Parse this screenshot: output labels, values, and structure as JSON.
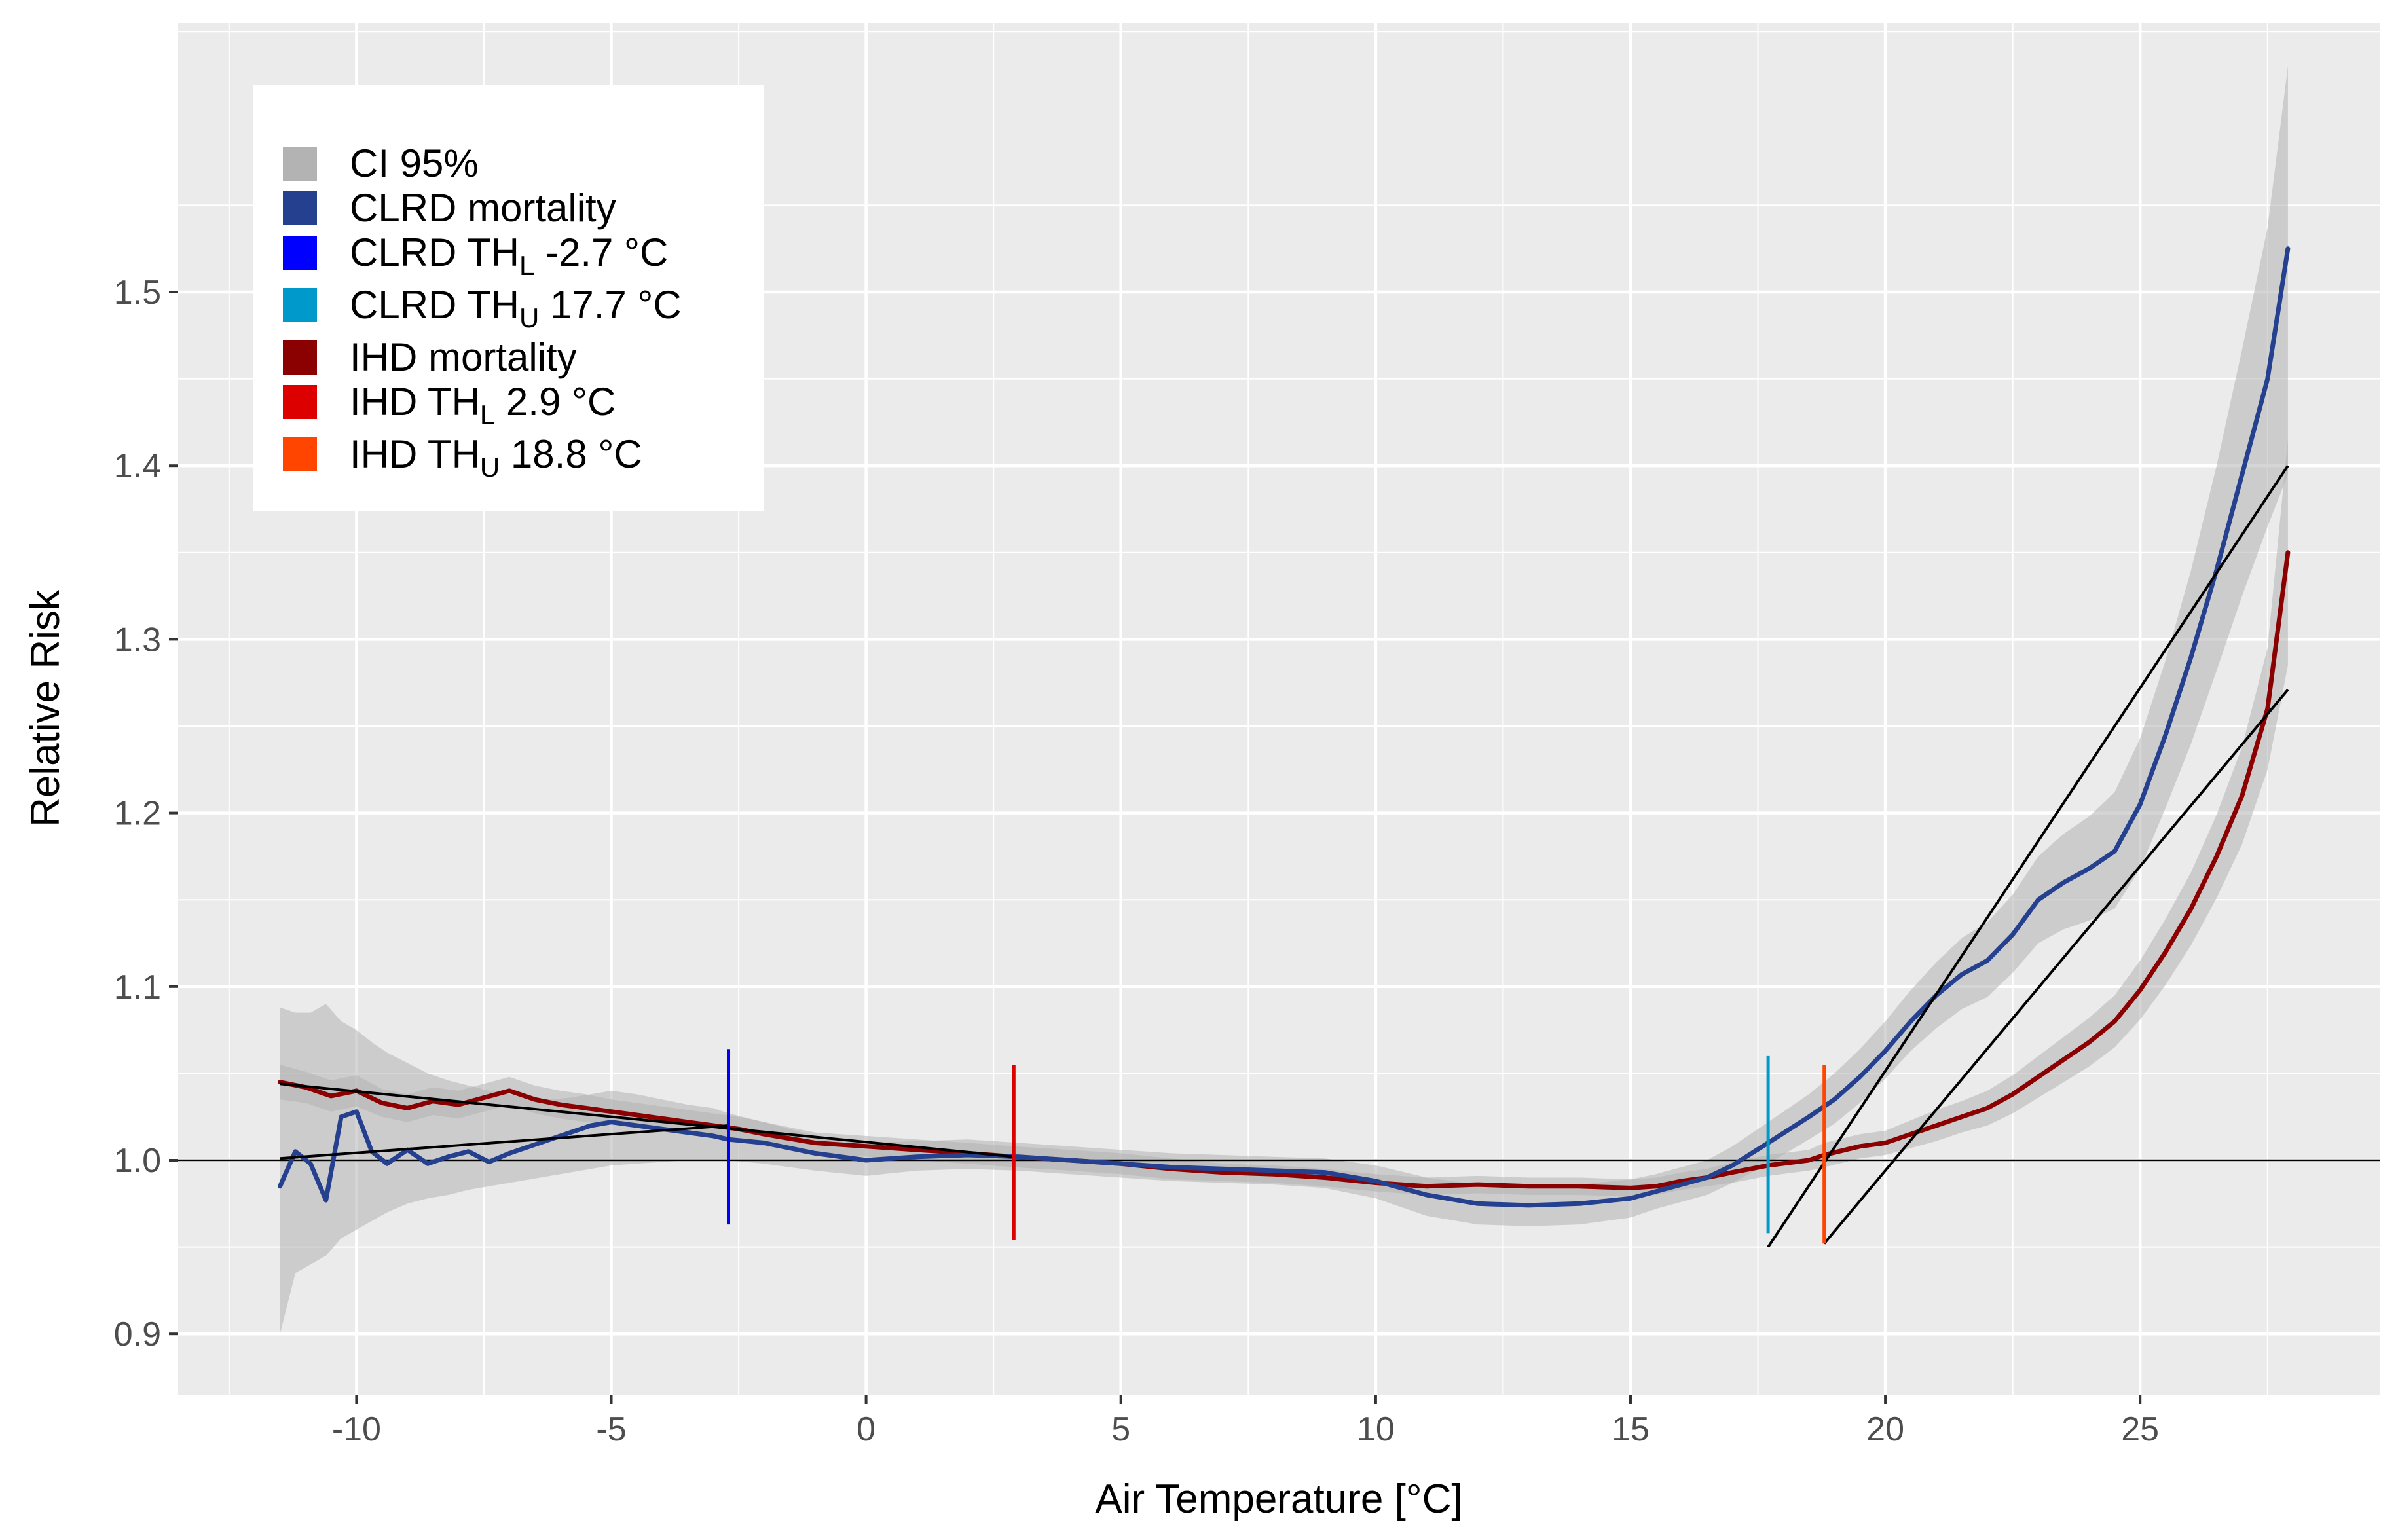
{
  "chart_data": {
    "type": "line",
    "title": "",
    "xlabel": "Air Temperature [°C]",
    "ylabel": "Relative Risk",
    "xlim": [
      -13.5,
      29.7
    ],
    "ylim": [
      0.865,
      1.655
    ],
    "x_ticks": [
      -10,
      -5,
      0,
      5,
      10,
      15,
      20,
      25
    ],
    "x_tick_labels": [
      "-10",
      "-5",
      "0",
      "5",
      "10",
      "15",
      "20",
      "25"
    ],
    "y_ticks": [
      0.9,
      1.0,
      1.1,
      1.2,
      1.3,
      1.4,
      1.5
    ],
    "y_tick_labels": [
      "0.9",
      "1.0",
      "1.1",
      "1.2",
      "1.3",
      "1.4",
      "1.5"
    ],
    "grid": true,
    "reference_line_y": 1.0,
    "legend_position": "top-left",
    "legend": [
      {
        "key": "ci",
        "label": "CI 95%",
        "color": "#b3b3b3"
      },
      {
        "key": "clrd",
        "label": "CLRD mortality",
        "color": "#24408e"
      },
      {
        "key": "clrd_thl",
        "label": "CLRD TH",
        "sub": "L",
        "suffix": " -2.7 °C",
        "color": "#0000ff"
      },
      {
        "key": "clrd_thu",
        "label": "CLRD TH",
        "sub": "U",
        "suffix": " 17.7 °C",
        "color": "#0099cc"
      },
      {
        "key": "ihd",
        "label": "IHD mortality",
        "color": "#8b0000"
      },
      {
        "key": "ihd_thl",
        "label": "IHD TH",
        "sub": "L",
        "suffix": " 2.9 °C",
        "color": "#dd0000"
      },
      {
        "key": "ihd_thu",
        "label": "IHD TH",
        "sub": "U",
        "suffix": " 18.8 °C",
        "color": "#ff4500"
      }
    ],
    "series": [
      {
        "name": "CLRD mortality",
        "color": "#24408e",
        "x": [
          -11.5,
          -11.2,
          -10.9,
          -10.6,
          -10.3,
          -10.0,
          -9.7,
          -9.4,
          -9.0,
          -8.6,
          -8.2,
          -7.8,
          -7.4,
          -7.0,
          -6.6,
          -6.2,
          -5.8,
          -5.4,
          -5.0,
          -4.5,
          -4.0,
          -3.5,
          -3.0,
          -2.7,
          -2.0,
          -1.0,
          0.0,
          1.0,
          2.0,
          3.0,
          4.0,
          5.0,
          6.0,
          7.0,
          8.0,
          9.0,
          10.0,
          11.0,
          12.0,
          13.0,
          14.0,
          15.0,
          15.5,
          16.0,
          16.5,
          17.0,
          17.7,
          18.5,
          19.0,
          19.5,
          20.0,
          20.5,
          21.0,
          21.5,
          22.0,
          22.5,
          23.0,
          23.5,
          24.0,
          24.5,
          25.0,
          25.5,
          26.0,
          26.5,
          27.0,
          27.5,
          27.9
        ],
        "y": [
          0.985,
          1.005,
          0.998,
          0.977,
          1.025,
          1.028,
          1.005,
          0.998,
          1.006,
          0.998,
          1.002,
          1.005,
          0.999,
          1.004,
          1.008,
          1.012,
          1.016,
          1.02,
          1.022,
          1.02,
          1.018,
          1.016,
          1.014,
          1.012,
          1.01,
          1.004,
          1.0,
          1.002,
          1.003,
          1.002,
          1.0,
          0.998,
          0.996,
          0.995,
          0.994,
          0.993,
          0.988,
          0.98,
          0.975,
          0.974,
          0.975,
          0.978,
          0.982,
          0.986,
          0.99,
          0.997,
          1.01,
          1.025,
          1.035,
          1.048,
          1.063,
          1.08,
          1.095,
          1.107,
          1.115,
          1.13,
          1.15,
          1.16,
          1.168,
          1.178,
          1.205,
          1.245,
          1.29,
          1.34,
          1.395,
          1.45,
          1.525
        ],
        "ci_lower": [
          0.9,
          0.935,
          0.94,
          0.945,
          0.955,
          0.96,
          0.965,
          0.97,
          0.975,
          0.978,
          0.98,
          0.983,
          0.985,
          0.987,
          0.989,
          0.991,
          0.993,
          0.995,
          0.997,
          0.998,
          0.999,
          1.0,
          1.0,
          1.0,
          0.998,
          0.994,
          0.991,
          0.994,
          0.995,
          0.994,
          0.992,
          0.99,
          0.988,
          0.987,
          0.986,
          0.984,
          0.978,
          0.968,
          0.963,
          0.962,
          0.963,
          0.967,
          0.972,
          0.976,
          0.98,
          0.987,
          0.998,
          1.012,
          1.021,
          1.033,
          1.047,
          1.063,
          1.076,
          1.087,
          1.094,
          1.108,
          1.125,
          1.133,
          1.138,
          1.145,
          1.168,
          1.203,
          1.24,
          1.282,
          1.325,
          1.365,
          1.395
        ],
        "ci_upper": [
          1.088,
          1.085,
          1.085,
          1.09,
          1.08,
          1.075,
          1.068,
          1.062,
          1.056,
          1.05,
          1.046,
          1.043,
          1.04,
          1.038,
          1.036,
          1.035,
          1.036,
          1.038,
          1.04,
          1.038,
          1.035,
          1.032,
          1.03,
          1.027,
          1.022,
          1.014,
          1.01,
          1.011,
          1.012,
          1.01,
          1.008,
          1.006,
          1.004,
          1.003,
          1.002,
          1.001,
          0.997,
          0.99,
          0.986,
          0.985,
          0.986,
          0.989,
          0.992,
          0.996,
          1.0,
          1.008,
          1.022,
          1.038,
          1.05,
          1.064,
          1.08,
          1.098,
          1.114,
          1.128,
          1.137,
          1.153,
          1.175,
          1.188,
          1.198,
          1.212,
          1.243,
          1.288,
          1.34,
          1.4,
          1.467,
          1.537,
          1.63
        ]
      },
      {
        "name": "IHD mortality",
        "color": "#8b0000",
        "x": [
          -11.5,
          -11.0,
          -10.5,
          -10.0,
          -9.5,
          -9.0,
          -8.5,
          -8.0,
          -7.5,
          -7.0,
          -6.5,
          -6.0,
          -5.5,
          -5.0,
          -4.5,
          -4.0,
          -3.5,
          -3.0,
          -2.5,
          -2.0,
          -1.0,
          0.0,
          1.0,
          2.0,
          2.9,
          4.0,
          5.0,
          6.0,
          7.0,
          8.0,
          9.0,
          10.0,
          11.0,
          12.0,
          13.0,
          14.0,
          15.0,
          15.5,
          16.0,
          16.5,
          17.0,
          17.7,
          18.5,
          18.8,
          19.5,
          20.0,
          20.5,
          21.0,
          21.5,
          22.0,
          22.5,
          23.0,
          23.5,
          24.0,
          24.5,
          25.0,
          25.5,
          26.0,
          26.5,
          27.0,
          27.5,
          27.9
        ],
        "y": [
          1.045,
          1.042,
          1.037,
          1.04,
          1.033,
          1.03,
          1.034,
          1.032,
          1.036,
          1.04,
          1.035,
          1.032,
          1.03,
          1.028,
          1.026,
          1.024,
          1.022,
          1.02,
          1.018,
          1.015,
          1.01,
          1.008,
          1.006,
          1.004,
          1.002,
          1.0,
          0.998,
          0.995,
          0.993,
          0.992,
          0.99,
          0.987,
          0.985,
          0.986,
          0.985,
          0.985,
          0.984,
          0.985,
          0.988,
          0.99,
          0.993,
          0.997,
          1.0,
          1.003,
          1.008,
          1.01,
          1.015,
          1.02,
          1.025,
          1.03,
          1.038,
          1.048,
          1.058,
          1.068,
          1.08,
          1.098,
          1.12,
          1.145,
          1.175,
          1.21,
          1.26,
          1.35
        ],
        "ci_lower": [
          1.035,
          1.033,
          1.028,
          1.031,
          1.025,
          1.022,
          1.026,
          1.024,
          1.028,
          1.032,
          1.027,
          1.024,
          1.022,
          1.021,
          1.019,
          1.017,
          1.015,
          1.013,
          1.011,
          1.008,
          1.004,
          1.002,
          1.0,
          0.998,
          0.996,
          0.994,
          0.992,
          0.989,
          0.988,
          0.987,
          0.985,
          0.982,
          0.98,
          0.981,
          0.98,
          0.98,
          0.979,
          0.98,
          0.983,
          0.985,
          0.987,
          0.991,
          0.994,
          0.996,
          1.001,
          1.003,
          1.007,
          1.011,
          1.016,
          1.02,
          1.027,
          1.036,
          1.045,
          1.054,
          1.065,
          1.081,
          1.101,
          1.124,
          1.151,
          1.182,
          1.225,
          1.285
        ],
        "ci_upper": [
          1.055,
          1.051,
          1.046,
          1.049,
          1.041,
          1.038,
          1.042,
          1.04,
          1.044,
          1.048,
          1.043,
          1.04,
          1.038,
          1.035,
          1.033,
          1.031,
          1.029,
          1.027,
          1.025,
          1.022,
          1.016,
          1.014,
          1.012,
          1.01,
          1.008,
          1.006,
          1.004,
          1.001,
          0.998,
          0.997,
          0.995,
          0.992,
          0.99,
          0.991,
          0.99,
          0.99,
          0.989,
          0.99,
          0.993,
          0.995,
          0.999,
          1.003,
          1.006,
          1.01,
          1.015,
          1.017,
          1.023,
          1.029,
          1.034,
          1.04,
          1.049,
          1.06,
          1.071,
          1.082,
          1.095,
          1.115,
          1.139,
          1.166,
          1.199,
          1.238,
          1.295,
          1.415
        ]
      }
    ],
    "threshold_markers": [
      {
        "name": "CLRD TH_L",
        "x": -2.7,
        "y_range": [
          0.963,
          1.064
        ],
        "color": "#0000ff"
      },
      {
        "name": "IHD TH_L",
        "x": 2.9,
        "y_range": [
          0.954,
          1.055
        ],
        "color": "#dd0000"
      },
      {
        "name": "CLRD TH_U",
        "x": 17.7,
        "y_range": [
          0.958,
          1.06
        ],
        "color": "#0099cc"
      },
      {
        "name": "IHD TH_U",
        "x": 18.8,
        "y_range": [
          0.952,
          1.055
        ],
        "color": "#ff4500"
      }
    ],
    "trend_lines": [
      {
        "name": "CLRD cold trend",
        "x": [
          -11.5,
          -2.7
        ],
        "y": [
          1.001,
          1.02
        ],
        "color": "#000000"
      },
      {
        "name": "IHD cold trend",
        "x": [
          -11.5,
          2.9
        ],
        "y": [
          1.044,
          1.002
        ],
        "color": "#000000"
      },
      {
        "name": "CLRD heat trend",
        "x": [
          17.7,
          27.9
        ],
        "y": [
          0.95,
          1.4
        ],
        "color": "#000000"
      },
      {
        "name": "IHD heat trend",
        "x": [
          18.8,
          27.9
        ],
        "y": [
          0.952,
          1.271
        ],
        "color": "#000000"
      }
    ],
    "colors": {
      "panel_background": "#ebebeb",
      "grid_major": "#ffffff",
      "ci_fill": "#b3b3b3",
      "reference_line": "#000000"
    }
  }
}
